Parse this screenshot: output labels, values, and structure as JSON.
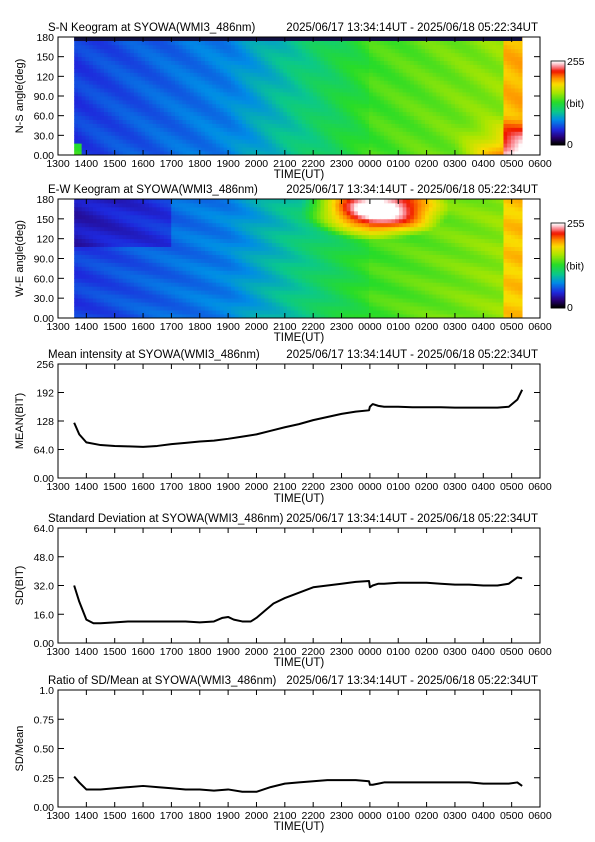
{
  "charts": [
    {
      "id": "sn",
      "type": "heatmap",
      "title": "S-N Keogram at SYOWA(WMI3_486nm)",
      "time_range": "2025/06/17 13:34:14UT - 2025/06/18 05:22:34UT",
      "ylabel": "N-S angle(deg)",
      "xlabel": "TIME(UT)",
      "yticks": [
        "0.00",
        "30.0",
        "60.0",
        "90.0",
        "120",
        "150",
        "180"
      ],
      "ytick_values": [
        0,
        30,
        60,
        90,
        120,
        150,
        180
      ],
      "colorbar": {
        "max_label": "255",
        "min_label": "0",
        "unit": "(bit)"
      }
    },
    {
      "id": "ew",
      "type": "heatmap",
      "title": "E-W Keogram at SYOWA(WMI3_486nm)",
      "time_range": "2025/06/17 13:34:14UT - 2025/06/18 05:22:34UT",
      "ylabel": "W-E angle(deg)",
      "xlabel": "TIME(UT)",
      "yticks": [
        "0.00",
        "30.0",
        "60.0",
        "90.0",
        "120",
        "150",
        "180"
      ],
      "ytick_values": [
        0,
        30,
        60,
        90,
        120,
        150,
        180
      ],
      "colorbar": {
        "max_label": "255",
        "min_label": "0",
        "unit": "(bit)"
      }
    },
    {
      "id": "mean",
      "type": "line",
      "title": "Mean intensity at SYOWA(WMI3_486nm)",
      "time_range": "2025/06/17 13:34:14UT - 2025/06/18 05:22:34UT",
      "ylabel": "MEAN(BIT)",
      "xlabel": "TIME(UT)",
      "yticks": [
        "0.00",
        "64.0",
        "128",
        "192",
        "256"
      ],
      "ytick_values": [
        0,
        64,
        128,
        192,
        256
      ],
      "ylim": [
        0,
        256
      ]
    },
    {
      "id": "sd",
      "type": "line",
      "title": "Standard Deviation at SYOWA(WMI3_486nm)",
      "time_range": "2025/06/17 13:34:14UT - 2025/06/18 05:22:34UT",
      "ylabel": "SD(BIT)",
      "xlabel": "TIME(UT)",
      "yticks": [
        "0.00",
        "16.0",
        "32.0",
        "48.0",
        "64.0"
      ],
      "ytick_values": [
        0,
        16,
        32,
        48,
        64
      ],
      "ylim": [
        0,
        64
      ]
    },
    {
      "id": "ratio",
      "type": "line",
      "title": "Ratio of SD/Mean at SYOWA(WMI3_486nm)",
      "time_range": "2025/06/17 13:34:14UT - 2025/06/18 05:22:34UT",
      "ylabel": "SD/Mean",
      "xlabel": "TIME(UT)",
      "yticks": [
        "0.00",
        "0.25",
        "0.50",
        "0.75",
        "1.0"
      ],
      "ytick_values": [
        0,
        0.25,
        0.5,
        0.75,
        1.0
      ],
      "ylim": [
        0,
        1.0
      ]
    }
  ],
  "chart_data": [
    {
      "type": "heatmap",
      "title": "S-N Keogram at SYOWA(WMI3_486nm)",
      "xlabel": "TIME(UT)",
      "ylabel": "N-S angle(deg)",
      "xticks": [
        "1300",
        "1400",
        "1500",
        "1600",
        "1700",
        "1800",
        "1900",
        "2000",
        "2100",
        "2200",
        "2300",
        "0000",
        "0100",
        "0200",
        "0300",
        "0400",
        "0500",
        "0600"
      ],
      "ylim": [
        0,
        180
      ],
      "colorbar_range": [
        0,
        255
      ],
      "description_values": {
        "early_brightness": 45,
        "late_brightness": 150,
        "low_angle_end_peak": 230
      }
    },
    {
      "type": "heatmap",
      "title": "E-W Keogram at SYOWA(WMI3_486nm)",
      "xlabel": "TIME(UT)",
      "ylabel": "W-E angle(deg)",
      "xticks": [
        "1300",
        "1400",
        "1500",
        "1600",
        "1700",
        "1800",
        "1900",
        "2000",
        "2100",
        "2200",
        "2300",
        "0000",
        "0100",
        "0200",
        "0300",
        "0400",
        "0500",
        "0600"
      ],
      "ylim": [
        0,
        180
      ],
      "colorbar_range": [
        0,
        255
      ],
      "description_values": {
        "early_brightness": 40,
        "late_brightness": 140,
        "high_angle_peak_near_0000": 250
      }
    },
    {
      "type": "line",
      "title": "Mean intensity at SYOWA(WMI3_486nm)",
      "xlabel": "TIME(UT)",
      "ylabel": "MEAN(BIT)",
      "ylim": [
        0,
        256
      ],
      "x": [
        13.57,
        13.75,
        14.0,
        14.5,
        15.0,
        15.5,
        16.0,
        16.5,
        17.0,
        17.5,
        18.0,
        18.5,
        19.0,
        19.5,
        20.0,
        20.5,
        21.0,
        21.5,
        22.0,
        22.5,
        23.0,
        23.5,
        23.97,
        24.0,
        24.1,
        24.3,
        24.5,
        25.0,
        25.5,
        26.0,
        26.5,
        27.0,
        27.5,
        28.0,
        28.5,
        28.9,
        29.2,
        29.37
      ],
      "series": [
        {
          "values": [
            124,
            98,
            80,
            74,
            72,
            71,
            70,
            72,
            76,
            79,
            82,
            84,
            88,
            93,
            98,
            106,
            114,
            121,
            130,
            137,
            144,
            149,
            152,
            160,
            166,
            162,
            160,
            160,
            159,
            159,
            159,
            158,
            158,
            158,
            158,
            160,
            176,
            198
          ]
        }
      ]
    },
    {
      "type": "line",
      "title": "Standard Deviation at SYOWA(WMI3_486nm)",
      "xlabel": "TIME(UT)",
      "ylabel": "SD(BIT)",
      "ylim": [
        0,
        64
      ],
      "x": [
        13.57,
        13.75,
        14.0,
        14.25,
        14.5,
        15.0,
        15.5,
        16.0,
        16.5,
        17.0,
        17.5,
        18.0,
        18.5,
        18.8,
        19.0,
        19.2,
        19.5,
        19.8,
        20.0,
        20.3,
        20.6,
        21.0,
        21.5,
        22.0,
        22.5,
        23.0,
        23.5,
        23.97,
        24.0,
        24.1,
        24.3,
        24.5,
        25.0,
        25.5,
        26.0,
        26.5,
        27.0,
        27.5,
        28.0,
        28.5,
        28.9,
        29.2,
        29.37
      ],
      "series": [
        {
          "values": [
            32,
            23,
            13,
            11,
            11,
            11.5,
            12,
            12,
            12,
            12,
            12,
            11.5,
            12,
            14,
            14.5,
            13,
            12,
            12,
            14,
            18,
            22,
            25,
            28,
            31,
            32,
            33,
            34,
            34.5,
            31,
            32,
            33,
            33,
            33.5,
            33.5,
            33.5,
            33,
            32.5,
            32.5,
            32,
            32,
            33,
            36.5,
            36
          ]
        }
      ]
    },
    {
      "type": "line",
      "title": "Ratio of SD/Mean at SYOWA(WMI3_486nm)",
      "xlabel": "TIME(UT)",
      "ylabel": "SD/Mean",
      "ylim": [
        0,
        1.0
      ],
      "x": [
        13.57,
        13.75,
        14.0,
        14.5,
        15.0,
        15.5,
        16.0,
        16.5,
        17.0,
        17.5,
        18.0,
        18.5,
        19.0,
        19.5,
        20.0,
        20.5,
        21.0,
        21.5,
        22.0,
        22.5,
        23.0,
        23.5,
        23.97,
        24.0,
        24.1,
        24.3,
        24.5,
        25.0,
        25.5,
        26.0,
        26.5,
        27.0,
        27.5,
        28.0,
        28.5,
        28.9,
        29.2,
        29.37
      ],
      "series": [
        {
          "values": [
            0.26,
            0.21,
            0.15,
            0.15,
            0.16,
            0.17,
            0.18,
            0.17,
            0.16,
            0.15,
            0.15,
            0.14,
            0.15,
            0.13,
            0.13,
            0.17,
            0.2,
            0.21,
            0.22,
            0.23,
            0.23,
            0.23,
            0.22,
            0.19,
            0.19,
            0.2,
            0.21,
            0.21,
            0.21,
            0.21,
            0.21,
            0.21,
            0.21,
            0.2,
            0.2,
            0.2,
            0.21,
            0.18
          ]
        }
      ]
    }
  ]
}
